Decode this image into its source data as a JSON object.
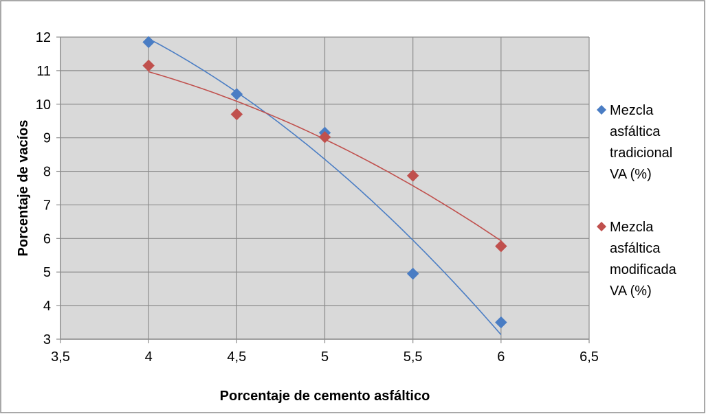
{
  "chart_data": {
    "type": "scatter",
    "title": "",
    "xlabel": "Porcentaje de cemento asfáltico",
    "ylabel": "Porcentaje de vacíos",
    "xlim": [
      3.5,
      6.5
    ],
    "ylim": [
      3,
      12
    ],
    "x_ticks": [
      "3,5",
      "4",
      "4,5",
      "5",
      "5,5",
      "6",
      "6,5"
    ],
    "y_ticks": [
      "3",
      "4",
      "5",
      "6",
      "7",
      "8",
      "9",
      "10",
      "11",
      "12"
    ],
    "grid": true,
    "legend_position": "right",
    "series": [
      {
        "name": "Mezcla asfáltica tradicional VA (%)",
        "legend_lines": [
          "Mezcla",
          "asfáltica",
          "tradicional",
          "VA (%)"
        ],
        "color": "#4a7dc4",
        "marker": "diamond",
        "x": [
          4,
          4.5,
          5,
          5.5,
          6
        ],
        "y": [
          11.85,
          10.3,
          9.15,
          4.95,
          3.5
        ],
        "trendline": "polynomial"
      },
      {
        "name": "Mezcla asfáltica modificada VA (%)",
        "legend_lines": [
          "Mezcla",
          "asfáltica",
          "modificada",
          "VA (%)"
        ],
        "color": "#c0504d",
        "marker": "diamond",
        "x": [
          4,
          4.5,
          5,
          5.5,
          6
        ],
        "y": [
          11.15,
          9.7,
          9.02,
          7.87,
          5.77
        ],
        "trendline": "polynomial"
      }
    ]
  }
}
